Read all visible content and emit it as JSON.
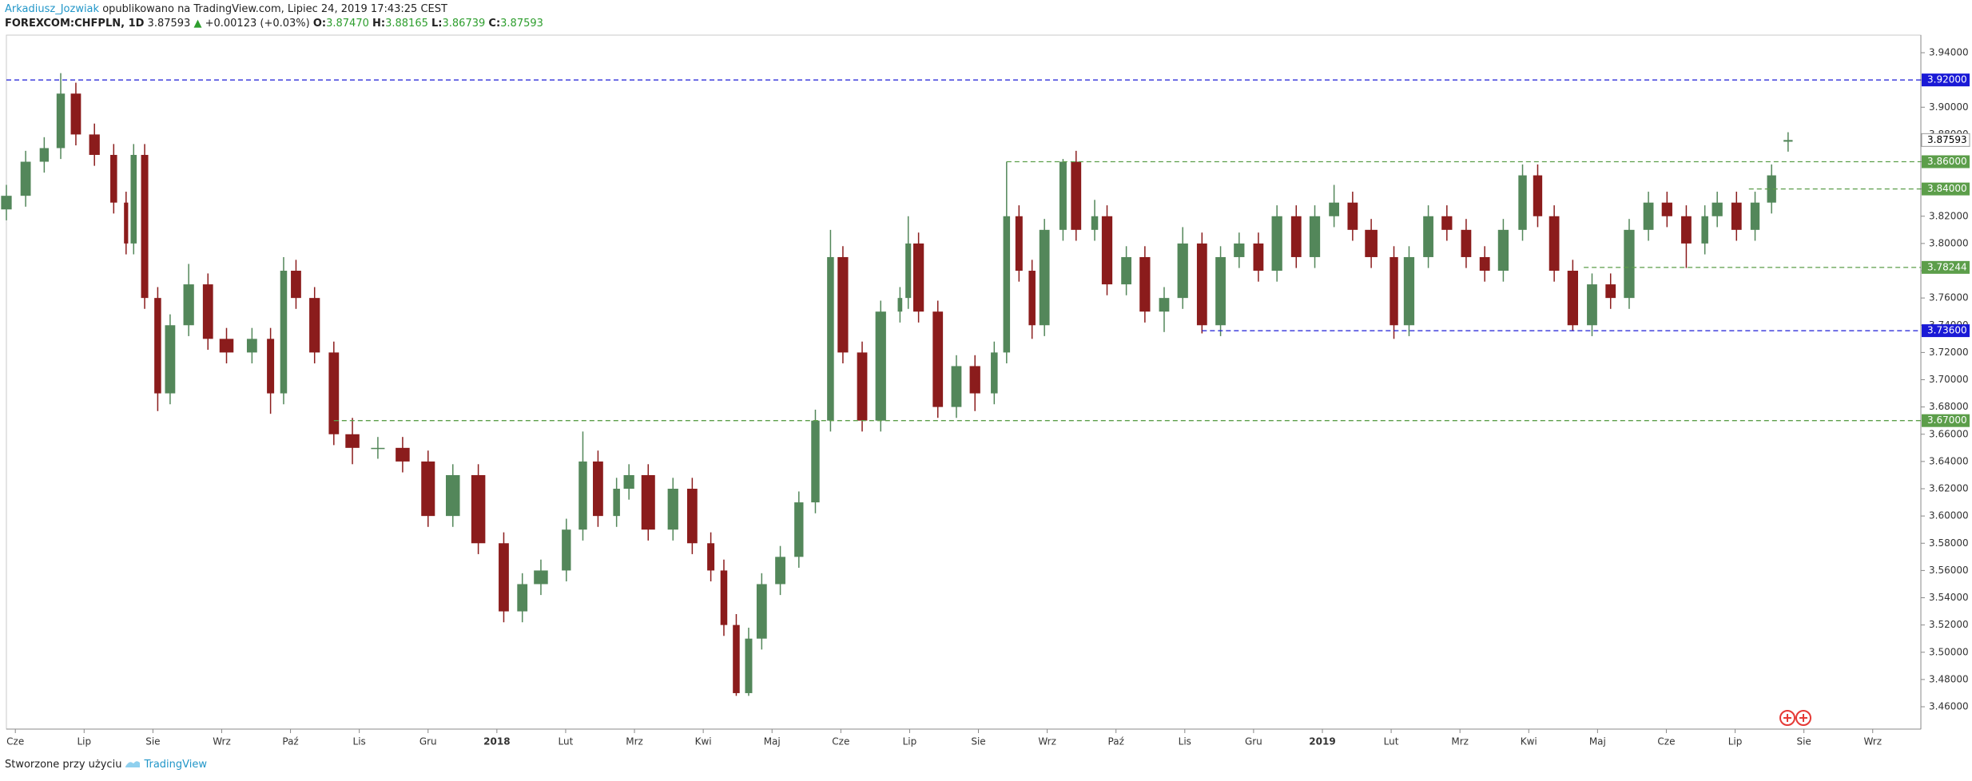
{
  "header": {
    "author": "Arkadiusz_Jozwiak",
    "published": "opublikowano na TradingView.com, Lipiec 24, 2019 17:43:25 CEST",
    "symbol": "FOREXCOM:CHFPLN, 1D",
    "last": "3.87593",
    "arrow": "▲",
    "change": "+0.00123 (+0.03%)",
    "o_label": "O:",
    "o": "3.87470",
    "h_label": "H:",
    "h": "3.88165",
    "l_label": "L:",
    "l": "3.86739",
    "c_label": "C:",
    "c": "3.87593"
  },
  "footer": {
    "text": "Stworzone przy użyciu",
    "brand": "TradingView"
  },
  "chart_data": {
    "type": "candlestick",
    "up_color": "#53875a",
    "down_color": "#8b1c1c",
    "xlim": [
      -0.13,
      27.7
    ],
    "ylim": [
      3.4436,
      3.9529
    ],
    "xticks": [
      {
        "value": 0,
        "label": "Cze"
      },
      {
        "value": 1,
        "label": "Lip"
      },
      {
        "value": 2,
        "label": "Sie"
      },
      {
        "value": 3,
        "label": "Wrz"
      },
      {
        "value": 4,
        "label": "Paź"
      },
      {
        "value": 5,
        "label": "Lis"
      },
      {
        "value": 6,
        "label": "Gru"
      },
      {
        "value": 7,
        "label": "2018"
      },
      {
        "value": 8,
        "label": "Lut"
      },
      {
        "value": 9,
        "label": "Mrz"
      },
      {
        "value": 10,
        "label": "Kwi"
      },
      {
        "value": 11,
        "label": "Maj"
      },
      {
        "value": 12,
        "label": "Cze"
      },
      {
        "value": 13,
        "label": "Lip"
      },
      {
        "value": 14,
        "label": "Sie"
      },
      {
        "value": 15,
        "label": "Wrz"
      },
      {
        "value": 16,
        "label": "Paź"
      },
      {
        "value": 17,
        "label": "Lis"
      },
      {
        "value": 18,
        "label": "Gru"
      },
      {
        "value": 19,
        "label": "2019"
      },
      {
        "value": 20,
        "label": "Lut"
      },
      {
        "value": 21,
        "label": "Mrz"
      },
      {
        "value": 22,
        "label": "Kwi"
      },
      {
        "value": 23,
        "label": "Maj"
      },
      {
        "value": 24,
        "label": "Cze"
      },
      {
        "value": 25,
        "label": "Lip"
      },
      {
        "value": 26,
        "label": "Sie"
      },
      {
        "value": 27,
        "label": "Wrz"
      }
    ],
    "yticks": [
      {
        "value": 3.46,
        "label": "3.46000"
      },
      {
        "value": 3.48,
        "label": "3.48000"
      },
      {
        "value": 3.5,
        "label": "3.50000"
      },
      {
        "value": 3.52,
        "label": "3.52000"
      },
      {
        "value": 3.54,
        "label": "3.54000"
      },
      {
        "value": 3.56,
        "label": "3.56000"
      },
      {
        "value": 3.58,
        "label": "3.58000"
      },
      {
        "value": 3.6,
        "label": "3.60000"
      },
      {
        "value": 3.62,
        "label": "3.62000"
      },
      {
        "value": 3.64,
        "label": "3.64000"
      },
      {
        "value": 3.66,
        "label": "3.66000"
      },
      {
        "value": 3.68,
        "label": "3.68000"
      },
      {
        "value": 3.7,
        "label": "3.70000"
      },
      {
        "value": 3.72,
        "label": "3.72000"
      },
      {
        "value": 3.74,
        "label": "3.74000"
      },
      {
        "value": 3.76,
        "label": "3.76000"
      },
      {
        "value": 3.78,
        "label": "3.78000"
      },
      {
        "value": 3.8,
        "label": "3.80000"
      },
      {
        "value": 3.82,
        "label": "3.82000"
      },
      {
        "value": 3.84,
        "label": "3.84000"
      },
      {
        "value": 3.86,
        "label": "3.86000"
      },
      {
        "value": 3.88,
        "label": "3.88000"
      },
      {
        "value": 3.9,
        "label": "3.90000"
      },
      {
        "value": 3.92,
        "label": "3.92000"
      },
      {
        "value": 3.94,
        "label": "3.94000"
      }
    ],
    "x": [
      -0.13,
      0.15,
      0.42,
      0.66,
      0.88,
      1.15,
      1.43,
      1.61,
      1.72,
      1.88,
      2.07,
      2.25,
      2.52,
      2.8,
      3.07,
      3.44,
      3.71,
      3.9,
      4.08,
      4.35,
      4.63,
      4.9,
      5.27,
      5.63,
      6.0,
      6.36,
      6.73,
      7.1,
      7.37,
      7.64,
      8.01,
      8.25,
      8.47,
      8.74,
      8.92,
      9.2,
      9.56,
      9.84,
      10.11,
      10.3,
      10.48,
      10.66,
      10.85,
      11.12,
      11.39,
      11.63,
      11.85,
      12.03,
      12.31,
      12.58,
      12.86,
      12.98,
      13.13,
      13.41,
      13.68,
      13.95,
      14.23,
      14.41,
      14.59,
      14.78,
      14.96,
      15.23,
      15.42,
      15.69,
      15.87,
      16.15,
      16.42,
      16.7,
      16.97,
      17.25,
      17.52,
      17.79,
      18.07,
      18.34,
      18.62,
      18.89,
      19.17,
      19.44,
      19.71,
      20.04,
      20.26,
      20.54,
      20.81,
      21.09,
      21.36,
      21.63,
      21.91,
      22.13,
      22.37,
      22.64,
      22.92,
      23.19,
      23.46,
      23.74,
      24.01,
      24.29,
      24.56,
      24.74,
      25.02,
      25.29,
      25.53,
      25.77
    ],
    "open": [
      3.825,
      3.835,
      3.86,
      3.87,
      3.91,
      3.88,
      3.865,
      3.83,
      3.8,
      3.865,
      3.76,
      3.69,
      3.74,
      3.77,
      3.73,
      3.72,
      3.73,
      3.69,
      3.78,
      3.76,
      3.72,
      3.66,
      3.65,
      3.65,
      3.64,
      3.6,
      3.63,
      3.58,
      3.53,
      3.55,
      3.56,
      3.59,
      3.64,
      3.6,
      3.62,
      3.63,
      3.59,
      3.62,
      3.58,
      3.56,
      3.52,
      3.47,
      3.51,
      3.55,
      3.57,
      3.61,
      3.67,
      3.79,
      3.72,
      3.67,
      3.75,
      3.76,
      3.8,
      3.75,
      3.68,
      3.71,
      3.69,
      3.72,
      3.82,
      3.78,
      3.74,
      3.81,
      3.86,
      3.81,
      3.82,
      3.77,
      3.79,
      3.75,
      3.76,
      3.8,
      3.74,
      3.79,
      3.8,
      3.78,
      3.82,
      3.79,
      3.82,
      3.83,
      3.81,
      3.79,
      3.74,
      3.79,
      3.82,
      3.81,
      3.79,
      3.78,
      3.81,
      3.85,
      3.82,
      3.78,
      3.74,
      3.77,
      3.76,
      3.81,
      3.83,
      3.82,
      3.8,
      3.82,
      3.83,
      3.81,
      3.83,
      3.8747
    ],
    "high": [
      3.843,
      3.868,
      3.878,
      3.925,
      3.918,
      3.888,
      3.873,
      3.838,
      3.873,
      3.873,
      3.768,
      3.748,
      3.785,
      3.778,
      3.738,
      3.738,
      3.738,
      3.79,
      3.788,
      3.768,
      3.728,
      3.672,
      3.658,
      3.658,
      3.648,
      3.638,
      3.638,
      3.588,
      3.558,
      3.568,
      3.598,
      3.662,
      3.648,
      3.628,
      3.638,
      3.638,
      3.628,
      3.628,
      3.588,
      3.568,
      3.528,
      3.518,
      3.558,
      3.578,
      3.618,
      3.678,
      3.81,
      3.798,
      3.728,
      3.758,
      3.768,
      3.82,
      3.808,
      3.758,
      3.718,
      3.718,
      3.728,
      3.86,
      3.828,
      3.788,
      3.818,
      3.862,
      3.868,
      3.832,
      3.828,
      3.798,
      3.798,
      3.768,
      3.812,
      3.808,
      3.798,
      3.808,
      3.808,
      3.828,
      3.828,
      3.828,
      3.843,
      3.838,
      3.818,
      3.798,
      3.798,
      3.828,
      3.828,
      3.818,
      3.798,
      3.818,
      3.858,
      3.858,
      3.828,
      3.788,
      3.778,
      3.778,
      3.818,
      3.838,
      3.838,
      3.828,
      3.828,
      3.838,
      3.838,
      3.838,
      3.858,
      3.88165
    ],
    "low": [
      3.817,
      3.827,
      3.852,
      3.862,
      3.872,
      3.857,
      3.822,
      3.792,
      3.792,
      3.752,
      3.677,
      3.682,
      3.732,
      3.722,
      3.712,
      3.712,
      3.675,
      3.682,
      3.752,
      3.712,
      3.652,
      3.638,
      3.642,
      3.632,
      3.592,
      3.592,
      3.572,
      3.522,
      3.522,
      3.542,
      3.552,
      3.582,
      3.592,
      3.592,
      3.612,
      3.582,
      3.582,
      3.572,
      3.552,
      3.512,
      3.468,
      3.468,
      3.502,
      3.542,
      3.562,
      3.602,
      3.662,
      3.712,
      3.662,
      3.662,
      3.742,
      3.752,
      3.742,
      3.672,
      3.672,
      3.677,
      3.682,
      3.712,
      3.772,
      3.73,
      3.732,
      3.802,
      3.802,
      3.802,
      3.762,
      3.762,
      3.742,
      3.735,
      3.752,
      3.734,
      3.732,
      3.782,
      3.772,
      3.772,
      3.782,
      3.782,
      3.812,
      3.802,
      3.782,
      3.73,
      3.732,
      3.782,
      3.802,
      3.782,
      3.772,
      3.772,
      3.802,
      3.812,
      3.772,
      3.736,
      3.732,
      3.752,
      3.752,
      3.802,
      3.812,
      3.782,
      3.792,
      3.812,
      3.802,
      3.802,
      3.822,
      3.86739
    ],
    "close": [
      3.835,
      3.86,
      3.87,
      3.91,
      3.88,
      3.865,
      3.83,
      3.8,
      3.865,
      3.76,
      3.69,
      3.74,
      3.77,
      3.73,
      3.72,
      3.73,
      3.69,
      3.78,
      3.76,
      3.72,
      3.66,
      3.65,
      3.65,
      3.64,
      3.6,
      3.63,
      3.58,
      3.53,
      3.55,
      3.56,
      3.59,
      3.64,
      3.6,
      3.62,
      3.63,
      3.59,
      3.62,
      3.58,
      3.56,
      3.52,
      3.47,
      3.51,
      3.55,
      3.57,
      3.61,
      3.67,
      3.79,
      3.72,
      3.67,
      3.75,
      3.76,
      3.8,
      3.75,
      3.68,
      3.71,
      3.69,
      3.72,
      3.82,
      3.78,
      3.74,
      3.81,
      3.86,
      3.81,
      3.82,
      3.77,
      3.79,
      3.75,
      3.76,
      3.8,
      3.74,
      3.79,
      3.8,
      3.78,
      3.82,
      3.79,
      3.82,
      3.83,
      3.81,
      3.79,
      3.74,
      3.79,
      3.82,
      3.81,
      3.79,
      3.78,
      3.81,
      3.85,
      3.82,
      3.78,
      3.74,
      3.77,
      3.76,
      3.81,
      3.83,
      3.82,
      3.8,
      3.82,
      3.83,
      3.81,
      3.83,
      3.85,
      3.87593
    ],
    "last_label": "3.87593",
    "levels": [
      {
        "value": 3.92,
        "label": "3.92000",
        "color": "#1a1ad6",
        "start": -0.13
      },
      {
        "value": 3.86,
        "label": "3.86000",
        "color": "#5c9e4a",
        "start": 14.41
      },
      {
        "value": 3.84,
        "label": "3.84000",
        "color": "#5c9e4a",
        "start": 25.2
      },
      {
        "value": 3.78244,
        "label": "3.78244",
        "color": "#5c9e4a",
        "start": 22.8
      },
      {
        "value": 3.736,
        "label": "3.73600",
        "color": "#1a1ad6",
        "start": 17.25
      },
      {
        "value": 3.67,
        "label": "3.67000",
        "color": "#5c9e4a",
        "start": 4.63
      }
    ]
  }
}
